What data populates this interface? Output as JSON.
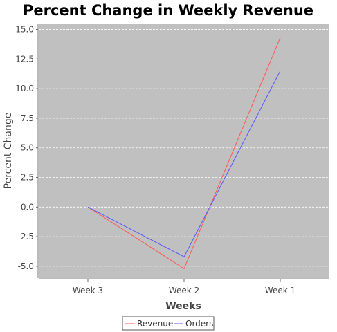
{
  "chart_data": {
    "type": "line",
    "title": "Percent Change in Weekly Revenue",
    "xlabel": "Weeks",
    "ylabel": "Percent Change",
    "categories": [
      "Week 3",
      "Week 2",
      "Week 1"
    ],
    "series": [
      {
        "name": "Revenue",
        "color": "#ff5555",
        "values": [
          0.0,
          -5.2,
          14.3
        ]
      },
      {
        "name": "Orders",
        "color": "#5555ff",
        "values": [
          0.0,
          -4.2,
          11.5
        ]
      }
    ],
    "ylim": [
      -6.0,
      15.5
    ],
    "yticks": [
      -5.0,
      -2.5,
      0.0,
      2.5,
      5.0,
      7.5,
      10.0,
      12.5,
      15.0
    ],
    "ytick_labels": [
      "-5.0",
      "-2.5",
      "0.0",
      "2.5",
      "5.0",
      "7.5",
      "10.0",
      "12.5",
      "15.0"
    ],
    "grid": true,
    "legend": "bottom-center",
    "plot_background": "#c0c0c0",
    "grid_color": "#ffffff"
  }
}
